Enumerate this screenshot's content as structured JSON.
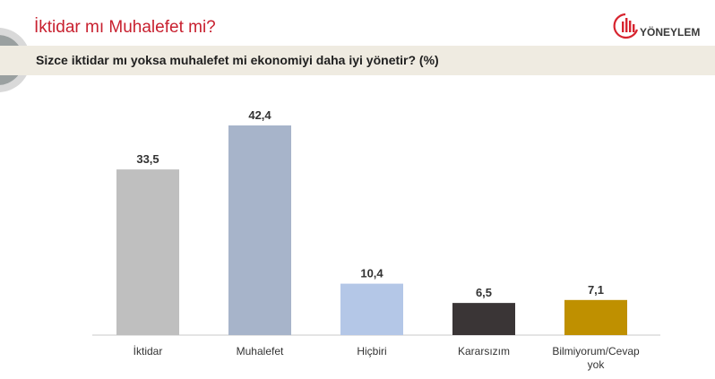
{
  "header": {
    "title": "İktidar mı Muhalefet mi?",
    "question": "Sizce iktidar mı yoksa muhalefet mi ekonomiyi daha iyi yönetir? (%)",
    "logo_text": "YÖNEYLEM"
  },
  "colors": {
    "title": "#c8202f",
    "question_bg": "#efebe1",
    "brand_red": "#d7242f"
  },
  "chart_data": {
    "type": "bar",
    "categories": [
      "İktidar",
      "Muhalefet",
      "Hiçbiri",
      "Kararsızım",
      "Bilmiyorum/Cevap yok"
    ],
    "values": [
      33.5,
      42.4,
      10.4,
      6.5,
      7.1
    ],
    "value_labels": [
      "33,5",
      "42,4",
      "10,4",
      "6,5",
      "7,1"
    ],
    "colors": [
      "#bfbfbf",
      "#a7b4ca",
      "#b4c7e7",
      "#3a3536",
      "#bf9000"
    ],
    "ylim": [
      0,
      42.4
    ],
    "grid": false,
    "legend": "none"
  }
}
